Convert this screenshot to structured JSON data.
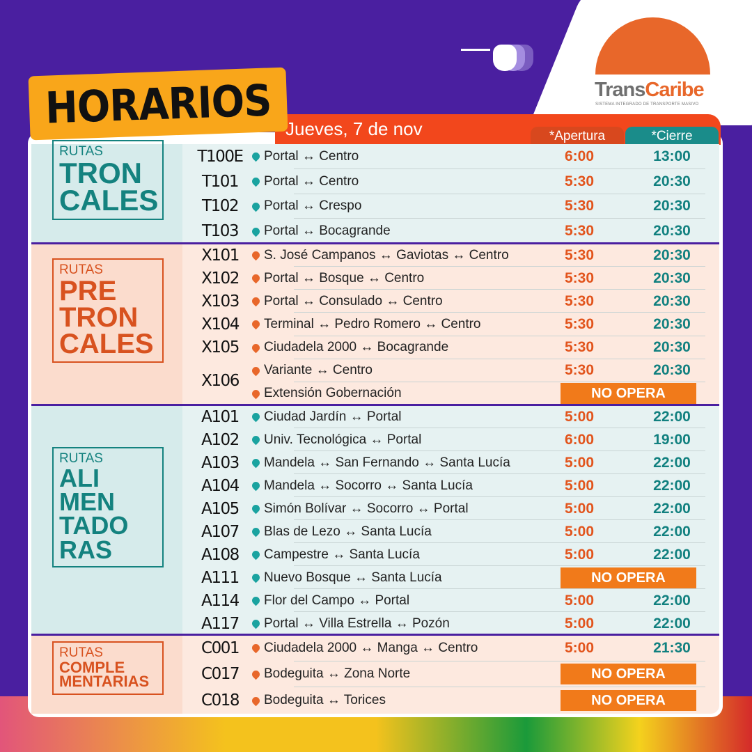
{
  "header": {
    "title": "HORARIOS",
    "date": "Jueves, 7 de nov",
    "col_open": "*Apertura",
    "col_close": "*Cierre"
  },
  "logo": {
    "brand_a": "Trans",
    "brand_b": "Caribe",
    "tagline": "SISTEMA INTEGRADO DE TRANSPORTE MASIVO"
  },
  "colors": {
    "purple": "#4a1fa0",
    "orange": "#f2471c",
    "teal": "#11807f",
    "yellow": "#f9a61a",
    "no_opera": "#f17a1a"
  },
  "sections": [
    {
      "small": "RUTAS",
      "big": [
        "TRON",
        "CALES"
      ],
      "theme": "teal",
      "routes": [
        {
          "code": "T100E",
          "lines": [
            {
              "name": "Portal ↔ Centro",
              "open": "6:00",
              "close": "13:00"
            }
          ]
        },
        {
          "code": "T101",
          "lines": [
            {
              "name": "Portal ↔ Centro",
              "open": "5:30",
              "close": "20:30"
            }
          ]
        },
        {
          "code": "T102",
          "lines": [
            {
              "name": "Portal ↔ Crespo",
              "open": "5:30",
              "close": "20:30"
            }
          ]
        },
        {
          "code": "T103",
          "lines": [
            {
              "name": "Portal ↔ Bocagrande",
              "open": "5:30",
              "close": "20:30"
            }
          ]
        }
      ]
    },
    {
      "small": "RUTAS",
      "big": [
        "PRE",
        "TRON",
        "CALES"
      ],
      "theme": "orange",
      "routes": [
        {
          "code": "X101",
          "lines": [
            {
              "name": "S. José Campanos ↔ Gaviotas ↔ Centro",
              "open": "5:30",
              "close": "20:30"
            }
          ]
        },
        {
          "code": "X102",
          "lines": [
            {
              "name": "Portal ↔ Bosque ↔ Centro",
              "open": "5:30",
              "close": "20:30"
            }
          ]
        },
        {
          "code": "X103",
          "lines": [
            {
              "name": "Portal ↔ Consulado ↔ Centro",
              "open": "5:30",
              "close": "20:30"
            }
          ]
        },
        {
          "code": "X104",
          "lines": [
            {
              "name": "Terminal ↔ Pedro Romero ↔ Centro",
              "open": "5:30",
              "close": "20:30"
            }
          ]
        },
        {
          "code": "X105",
          "lines": [
            {
              "name": "Ciudadela 2000 ↔ Bocagrande",
              "open": "5:30",
              "close": "20:30"
            }
          ]
        },
        {
          "code": "X106",
          "lines": [
            {
              "name": "Variante ↔ Centro",
              "open": "5:30",
              "close": "20:30"
            },
            {
              "name": "Extensión Gobernación",
              "status": "NO OPERA"
            }
          ]
        }
      ]
    },
    {
      "small": "RUTAS",
      "big": [
        "ALI",
        "MEN",
        "TADO",
        "RAS"
      ],
      "theme": "teal",
      "routes": [
        {
          "code": "A101",
          "lines": [
            {
              "name": "Ciudad Jardín ↔ Portal",
              "open": "5:00",
              "close": "22:00"
            }
          ]
        },
        {
          "code": "A102",
          "lines": [
            {
              "name": "Univ. Tecnológica ↔ Portal",
              "open": "6:00",
              "close": "19:00"
            }
          ]
        },
        {
          "code": "A103",
          "lines": [
            {
              "name": "Mandela ↔ San Fernando ↔ Santa Lucía",
              "open": "5:00",
              "close": "22:00"
            }
          ]
        },
        {
          "code": "A104",
          "lines": [
            {
              "name": "Mandela ↔ Socorro ↔ Santa Lucía",
              "open": "5:00",
              "close": "22:00"
            }
          ]
        },
        {
          "code": "A105",
          "lines": [
            {
              "name": "Simón Bolívar ↔ Socorro ↔ Portal",
              "open": "5:00",
              "close": "22:00"
            }
          ]
        },
        {
          "code": "A107",
          "lines": [
            {
              "name": "Blas de Lezo ↔ Santa Lucía",
              "open": "5:00",
              "close": "22:00"
            }
          ]
        },
        {
          "code": "A108",
          "lines": [
            {
              "name": "Campestre ↔ Santa Lucía",
              "open": "5:00",
              "close": "22:00"
            }
          ]
        },
        {
          "code": "A111",
          "lines": [
            {
              "name": "Nuevo Bosque ↔ Santa Lucía",
              "status": "NO OPERA"
            }
          ]
        },
        {
          "code": "A114",
          "lines": [
            {
              "name": "Flor del Campo ↔ Portal",
              "open": "5:00",
              "close": "22:00"
            }
          ]
        },
        {
          "code": "A117",
          "lines": [
            {
              "name": "Portal ↔ Villa Estrella ↔ Pozón",
              "open": "5:00",
              "close": "22:00"
            }
          ]
        }
      ]
    },
    {
      "small": "RUTAS",
      "big": [
        "COMPLE",
        "MENTARIAS"
      ],
      "theme": "orange",
      "routes": [
        {
          "code": "C001",
          "lines": [
            {
              "name": "Ciudadela 2000 ↔ Manga ↔ Centro",
              "open": "5:00",
              "close": "21:30"
            }
          ]
        },
        {
          "code": "C017",
          "lines": [
            {
              "name": "Bodeguita ↔ Zona Norte",
              "status": "NO OPERA"
            }
          ]
        },
        {
          "code": "C018",
          "lines": [
            {
              "name": "Bodeguita ↔ Torices",
              "status": "NO OPERA"
            }
          ]
        }
      ]
    }
  ]
}
